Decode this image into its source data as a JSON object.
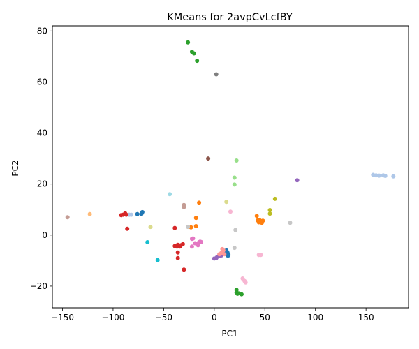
{
  "chart_data": {
    "type": "scatter",
    "title": "KMeans for 2avpCvLcfBY",
    "xlabel": "PC1",
    "ylabel": "PC2",
    "xlim": [
      -160,
      192
    ],
    "ylim": [
      -28.5,
      82
    ],
    "xticks": [
      -150,
      -100,
      -50,
      0,
      50,
      100,
      150
    ],
    "yticks": [
      -20,
      0,
      20,
      40,
      60,
      80
    ],
    "grid": false,
    "legend": "none",
    "colors": {
      "tab:blue": "#1f77b4",
      "lightblue": "#aec7e8",
      "orange": "#ff7f0e",
      "lightorange": "#ffbb78",
      "green": "#2ca02c",
      "lightgreen": "#98df8a",
      "red": "#d62728",
      "salmon": "#ff9896",
      "purple": "#9467bd",
      "brown": "#8c564b",
      "rosybrown": "#c49c94",
      "pink": "#e377c2",
      "lightpink": "#f7b6d2",
      "gray": "#7f7f7f",
      "lightgray": "#c7c7c7",
      "olive": "#bcbd22",
      "khaki": "#dbdb8d",
      "cyan": "#17becf",
      "lightcyan": "#9edae5"
    },
    "points": [
      {
        "x": -26,
        "y": 75.5,
        "c": "green"
      },
      {
        "x": -22,
        "y": 71.8,
        "c": "green"
      },
      {
        "x": -20,
        "y": 71.2,
        "c": "green"
      },
      {
        "x": -17,
        "y": 68.3,
        "c": "green"
      },
      {
        "x": 22,
        "y": -21.5,
        "c": "green"
      },
      {
        "x": 22,
        "y": -22.5,
        "c": "green"
      },
      {
        "x": 24,
        "y": -22.8,
        "c": "green"
      },
      {
        "x": 27,
        "y": -23.2,
        "c": "green"
      },
      {
        "x": 23,
        "y": -23,
        "c": "green"
      },
      {
        "x": 2,
        "y": 63,
        "c": "gray"
      },
      {
        "x": -6,
        "y": 30,
        "c": "brown"
      },
      {
        "x": 22,
        "y": 29.2,
        "c": "lightgreen"
      },
      {
        "x": 20,
        "y": 22.5,
        "c": "lightgreen"
      },
      {
        "x": 20,
        "y": 19.8,
        "c": "lightgreen"
      },
      {
        "x": 157,
        "y": 23.6,
        "c": "lightblue"
      },
      {
        "x": 160,
        "y": 23.4,
        "c": "lightblue"
      },
      {
        "x": 163,
        "y": 23.3,
        "c": "lightblue"
      },
      {
        "x": 167,
        "y": 23.4,
        "c": "lightblue"
      },
      {
        "x": 169,
        "y": 23.2,
        "c": "lightblue"
      },
      {
        "x": 177,
        "y": 23,
        "c": "lightblue"
      },
      {
        "x": -82,
        "y": 8,
        "c": "lightblue"
      },
      {
        "x": -84,
        "y": 8,
        "c": "lightblue"
      },
      {
        "x": 82,
        "y": 21.5,
        "c": "purple"
      },
      {
        "x": 0,
        "y": -9.2,
        "c": "purple"
      },
      {
        "x": 2,
        "y": -9,
        "c": "purple"
      },
      {
        "x": 3,
        "y": -8.5,
        "c": "purple"
      },
      {
        "x": 5,
        "y": -8.2,
        "c": "purple"
      },
      {
        "x": 7,
        "y": -8,
        "c": "purple"
      },
      {
        "x": 60,
        "y": 14.2,
        "c": "olive"
      },
      {
        "x": 55,
        "y": 9.8,
        "c": "olive"
      },
      {
        "x": 55,
        "y": 8.4,
        "c": "olive"
      },
      {
        "x": -44,
        "y": 16,
        "c": "lightcyan"
      },
      {
        "x": 12,
        "y": 13,
        "c": "khaki"
      },
      {
        "x": -63,
        "y": 3.2,
        "c": "khaki"
      },
      {
        "x": -15,
        "y": 12.7,
        "c": "orange"
      },
      {
        "x": -18,
        "y": 6.7,
        "c": "orange"
      },
      {
        "x": -18,
        "y": 3.5,
        "c": "orange"
      },
      {
        "x": -23,
        "y": 3,
        "c": "orange"
      },
      {
        "x": 42,
        "y": 7.5,
        "c": "orange"
      },
      {
        "x": 43,
        "y": 5.8,
        "c": "orange"
      },
      {
        "x": 44,
        "y": 5,
        "c": "orange"
      },
      {
        "x": 45,
        "y": 5.8,
        "c": "orange"
      },
      {
        "x": 46,
        "y": 5.2,
        "c": "orange"
      },
      {
        "x": 47,
        "y": 4.8,
        "c": "orange"
      },
      {
        "x": 48,
        "y": 5.6,
        "c": "orange"
      },
      {
        "x": 16,
        "y": 9.2,
        "c": "lightpink"
      },
      {
        "x": 44,
        "y": -7.8,
        "c": "lightpink"
      },
      {
        "x": 46,
        "y": -7.8,
        "c": "lightpink"
      },
      {
        "x": 28,
        "y": -17,
        "c": "lightpink"
      },
      {
        "x": 29,
        "y": -17.5,
        "c": "lightpink"
      },
      {
        "x": 30,
        "y": -18,
        "c": "lightpink"
      },
      {
        "x": 31,
        "y": -18.6,
        "c": "lightpink"
      },
      {
        "x": 75,
        "y": 4.8,
        "c": "lightgray"
      },
      {
        "x": 21,
        "y": 2,
        "c": "lightgray"
      },
      {
        "x": 20,
        "y": -5,
        "c": "lightgray"
      },
      {
        "x": -26,
        "y": 3.2,
        "c": "lightgray"
      },
      {
        "x": -30,
        "y": 11.8,
        "c": "rosybrown"
      },
      {
        "x": -30,
        "y": 11,
        "c": "rosybrown"
      },
      {
        "x": -145,
        "y": 7,
        "c": "rosybrown"
      },
      {
        "x": -123,
        "y": 8.2,
        "c": "lightorange"
      },
      {
        "x": -92,
        "y": 7.8,
        "c": "red"
      },
      {
        "x": -90,
        "y": 8,
        "c": "red"
      },
      {
        "x": -88,
        "y": 8.5,
        "c": "red"
      },
      {
        "x": -87,
        "y": 8,
        "c": "red"
      },
      {
        "x": -86,
        "y": 2.5,
        "c": "red"
      },
      {
        "x": -39,
        "y": 2.8,
        "c": "red"
      },
      {
        "x": -39,
        "y": -4.3,
        "c": "red"
      },
      {
        "x": -37,
        "y": -4.5,
        "c": "red"
      },
      {
        "x": -36,
        "y": -3.8,
        "c": "red"
      },
      {
        "x": -35,
        "y": -4.2,
        "c": "red"
      },
      {
        "x": -34,
        "y": -4.5,
        "c": "red"
      },
      {
        "x": -33,
        "y": -4,
        "c": "red"
      },
      {
        "x": -31,
        "y": -3.5,
        "c": "red"
      },
      {
        "x": -36,
        "y": -6.8,
        "c": "red"
      },
      {
        "x": -36,
        "y": -9,
        "c": "red"
      },
      {
        "x": -30,
        "y": -13.5,
        "c": "red"
      },
      {
        "x": -76,
        "y": 8.2,
        "c": "tab:blue"
      },
      {
        "x": -72,
        "y": 8.3,
        "c": "tab:blue"
      },
      {
        "x": -71,
        "y": 9,
        "c": "tab:blue"
      },
      {
        "x": 10,
        "y": -6.5,
        "c": "tab:blue"
      },
      {
        "x": 11,
        "y": -7,
        "c": "tab:blue"
      },
      {
        "x": 12,
        "y": -6,
        "c": "tab:blue"
      },
      {
        "x": 12,
        "y": -7.5,
        "c": "tab:blue"
      },
      {
        "x": 13,
        "y": -6.8,
        "c": "tab:blue"
      },
      {
        "x": 14,
        "y": -7.5,
        "c": "tab:blue"
      },
      {
        "x": 14,
        "y": -8,
        "c": "tab:blue"
      },
      {
        "x": 13,
        "y": -8,
        "c": "tab:blue"
      },
      {
        "x": -66,
        "y": -2.8,
        "c": "cyan"
      },
      {
        "x": -56,
        "y": -9.8,
        "c": "cyan"
      },
      {
        "x": -22,
        "y": -1.5,
        "c": "pink"
      },
      {
        "x": -21,
        "y": -1.3,
        "c": "pink"
      },
      {
        "x": -19,
        "y": -3.2,
        "c": "pink"
      },
      {
        "x": -17,
        "y": -3.5,
        "c": "pink"
      },
      {
        "x": -16,
        "y": -4,
        "c": "pink"
      },
      {
        "x": -15,
        "y": -2.8,
        "c": "pink"
      },
      {
        "x": -14,
        "y": -2.6,
        "c": "pink"
      },
      {
        "x": -13,
        "y": -2.7,
        "c": "pink"
      },
      {
        "x": -22,
        "y": -4.5,
        "c": "pink"
      },
      {
        "x": 8,
        "y": -5.5,
        "c": "salmon"
      },
      {
        "x": 9,
        "y": -6,
        "c": "salmon"
      },
      {
        "x": 7,
        "y": -7,
        "c": "salmon"
      },
      {
        "x": 10,
        "y": -7.5,
        "c": "salmon"
      },
      {
        "x": 5,
        "y": -7.5,
        "c": "salmon"
      }
    ]
  }
}
